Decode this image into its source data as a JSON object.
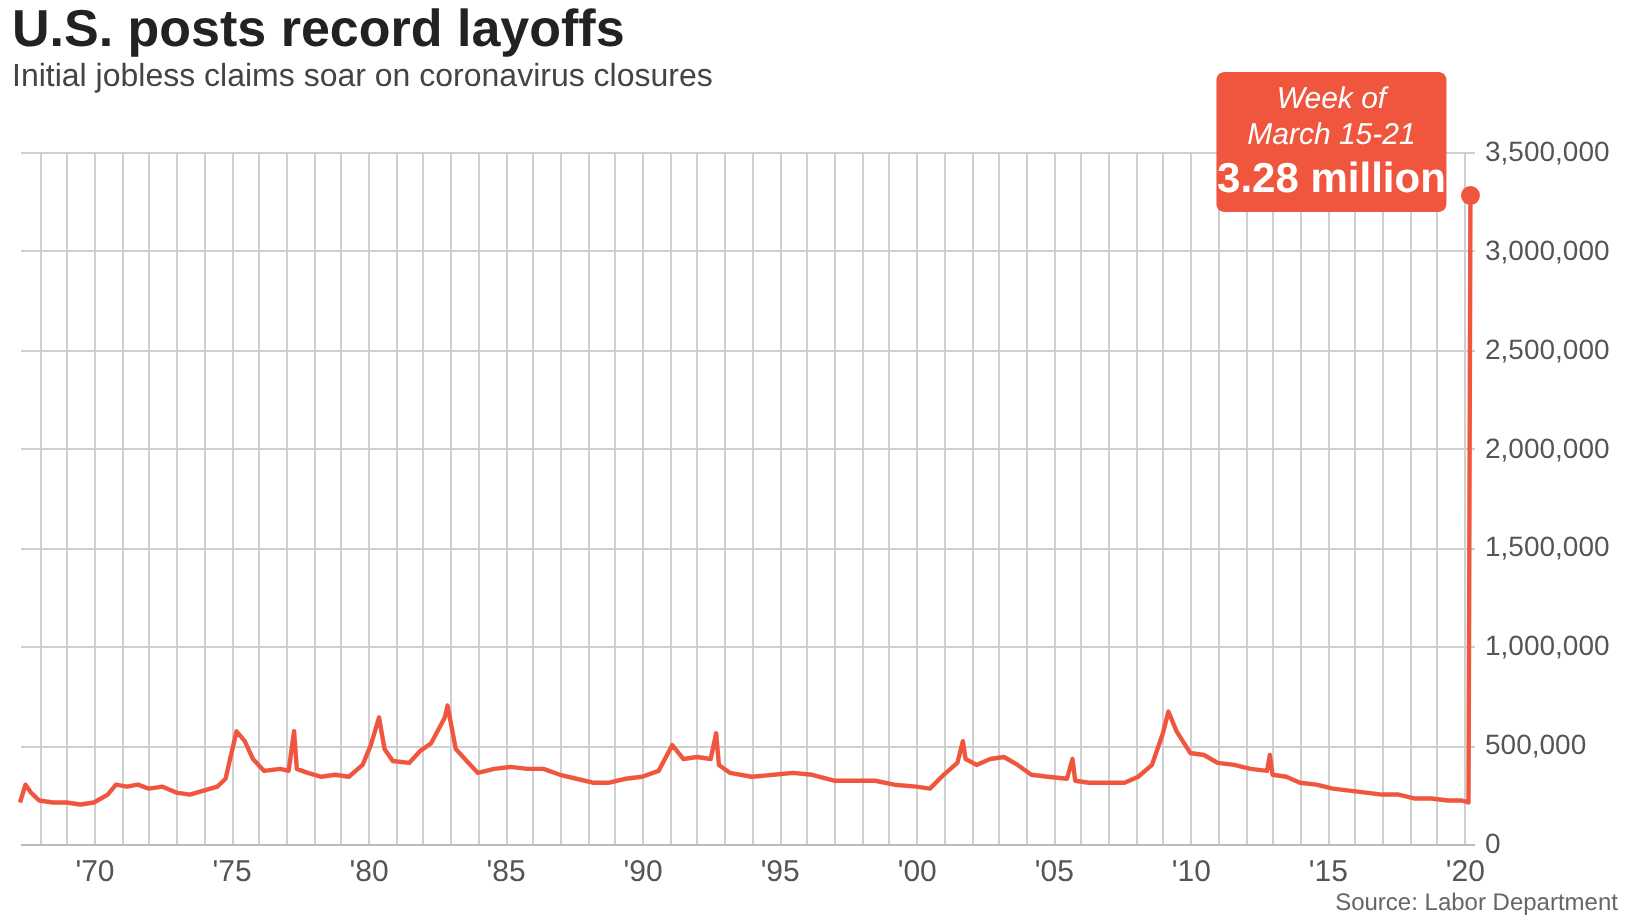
{
  "chart_data": {
    "type": "line",
    "title": "U.S. posts record layoffs",
    "subtitle": "Initial jobless claims soar on coronavirus closures",
    "x": [
      1967.3,
      1967.5,
      1967.7,
      1968.0,
      1968.5,
      1969.0,
      1969.5,
      1970.0,
      1970.5,
      1970.8,
      1971.2,
      1971.6,
      1972.0,
      1972.5,
      1973.0,
      1973.5,
      1974.0,
      1974.5,
      1974.8,
      1975.0,
      1975.2,
      1975.5,
      1975.8,
      1976.2,
      1976.8,
      1977.1,
      1977.3,
      1977.4,
      1977.8,
      1978.3,
      1978.8,
      1979.3,
      1979.8,
      1980.1,
      1980.4,
      1980.6,
      1980.9,
      1981.5,
      1981.9,
      1982.3,
      1982.8,
      1982.9,
      1983.2,
      1983.6,
      1984.0,
      1984.6,
      1985.2,
      1985.8,
      1986.4,
      1987.0,
      1987.6,
      1988.2,
      1988.8,
      1989.4,
      1990.0,
      1990.6,
      1991.1,
      1991.5,
      1992.0,
      1992.5,
      1992.7,
      1992.8,
      1993.2,
      1994.0,
      1994.8,
      1995.5,
      1996.2,
      1997.0,
      1997.8,
      1998.5,
      1999.2,
      2000.0,
      2000.5,
      2001.0,
      2001.5,
      2001.7,
      2001.8,
      2002.2,
      2002.7,
      2003.2,
      2003.7,
      2004.2,
      2004.8,
      2005.5,
      2005.7,
      2005.8,
      2006.3,
      2007.0,
      2007.6,
      2008.1,
      2008.6,
      2009.0,
      2009.2,
      2009.5,
      2010.0,
      2010.5,
      2011.0,
      2011.6,
      2012.2,
      2012.8,
      2012.9,
      2013.0,
      2013.5,
      2014.0,
      2014.6,
      2015.2,
      2015.8,
      2016.4,
      2017.0,
      2017.6,
      2018.2,
      2018.8,
      2019.4,
      2019.9,
      2020.15,
      2020.22
    ],
    "series": [
      {
        "color": "#f0553e",
        "values": [
          210000,
          300000,
          260000,
          220000,
          210000,
          210000,
          200000,
          210000,
          250000,
          300000,
          290000,
          300000,
          280000,
          290000,
          260000,
          250000,
          270000,
          290000,
          330000,
          450000,
          570000,
          520000,
          430000,
          370000,
          380000,
          370000,
          570000,
          380000,
          360000,
          340000,
          350000,
          340000,
          400000,
          500000,
          640000,
          480000,
          420000,
          410000,
          470000,
          510000,
          640000,
          700000,
          480000,
          420000,
          360000,
          380000,
          390000,
          380000,
          380000,
          350000,
          330000,
          310000,
          310000,
          330000,
          340000,
          370000,
          500000,
          430000,
          440000,
          430000,
          560000,
          400000,
          360000,
          340000,
          350000,
          360000,
          350000,
          320000,
          320000,
          320000,
          300000,
          290000,
          280000,
          350000,
          410000,
          520000,
          430000,
          400000,
          430000,
          440000,
          400000,
          350000,
          340000,
          330000,
          430000,
          320000,
          310000,
          310000,
          310000,
          340000,
          400000,
          560000,
          670000,
          570000,
          460000,
          450000,
          410000,
          400000,
          380000,
          370000,
          450000,
          350000,
          340000,
          310000,
          300000,
          280000,
          270000,
          260000,
          250000,
          250000,
          230000,
          230000,
          220000,
          220000,
          210000,
          3280000
        ]
      }
    ],
    "xlim": [
      1967.3,
      2020.35
    ],
    "xticks": [
      {
        "value": 1968,
        "label": null
      },
      {
        "value": 1969,
        "label": null
      },
      {
        "value": 1970,
        "label": "'70"
      },
      {
        "value": 1971,
        "label": null
      },
      {
        "value": 1972,
        "label": null
      },
      {
        "value": 1973,
        "label": null
      },
      {
        "value": 1974,
        "label": null
      },
      {
        "value": 1975,
        "label": "'75"
      },
      {
        "value": 1976,
        "label": null
      },
      {
        "value": 1977,
        "label": null
      },
      {
        "value": 1978,
        "label": null
      },
      {
        "value": 1979,
        "label": null
      },
      {
        "value": 1980,
        "label": "'80"
      },
      {
        "value": 1981,
        "label": null
      },
      {
        "value": 1982,
        "label": null
      },
      {
        "value": 1983,
        "label": null
      },
      {
        "value": 1984,
        "label": null
      },
      {
        "value": 1985,
        "label": "'85"
      },
      {
        "value": 1986,
        "label": null
      },
      {
        "value": 1987,
        "label": null
      },
      {
        "value": 1988,
        "label": null
      },
      {
        "value": 1989,
        "label": null
      },
      {
        "value": 1990,
        "label": "'90"
      },
      {
        "value": 1991,
        "label": null
      },
      {
        "value": 1992,
        "label": null
      },
      {
        "value": 1993,
        "label": null
      },
      {
        "value": 1994,
        "label": null
      },
      {
        "value": 1995,
        "label": "'95"
      },
      {
        "value": 1996,
        "label": null
      },
      {
        "value": 1997,
        "label": null
      },
      {
        "value": 1998,
        "label": null
      },
      {
        "value": 1999,
        "label": null
      },
      {
        "value": 2000,
        "label": "'00"
      },
      {
        "value": 2001,
        "label": null
      },
      {
        "value": 2002,
        "label": null
      },
      {
        "value": 2003,
        "label": null
      },
      {
        "value": 2004,
        "label": null
      },
      {
        "value": 2005,
        "label": "'05"
      },
      {
        "value": 2006,
        "label": null
      },
      {
        "value": 2007,
        "label": null
      },
      {
        "value": 2008,
        "label": null
      },
      {
        "value": 2009,
        "label": null
      },
      {
        "value": 2010,
        "label": "'10"
      },
      {
        "value": 2011,
        "label": null
      },
      {
        "value": 2012,
        "label": null
      },
      {
        "value": 2013,
        "label": null
      },
      {
        "value": 2014,
        "label": null
      },
      {
        "value": 2015,
        "label": "'15"
      },
      {
        "value": 2016,
        "label": null
      },
      {
        "value": 2017,
        "label": null
      },
      {
        "value": 2018,
        "label": null
      },
      {
        "value": 2019,
        "label": null
      },
      {
        "value": 2020,
        "label": "'20"
      }
    ],
    "ylim": [
      0,
      3500000
    ],
    "yticks": [
      0,
      {
        "value": 500000,
        "label": "500,000"
      },
      {
        "value": 1000000,
        "label": "1,000,000"
      },
      {
        "value": 1500000,
        "label": "1,500,000"
      },
      {
        "value": 2000000,
        "label": "2,000,000"
      },
      {
        "value": 2500000,
        "label": "2,500,000"
      },
      {
        "value": 3000000,
        "label": "3,000,000"
      },
      {
        "value": 3500000,
        "label": "3,500,000"
      }
    ],
    "grid": true,
    "marker": "none",
    "line_style": "solid",
    "annotations": [
      {
        "text": "Week of\nMarch 15-21\n3.28 million",
        "x": 2020.22,
        "y": 3280000
      },
      "Source: Labor Department"
    ]
  }
}
